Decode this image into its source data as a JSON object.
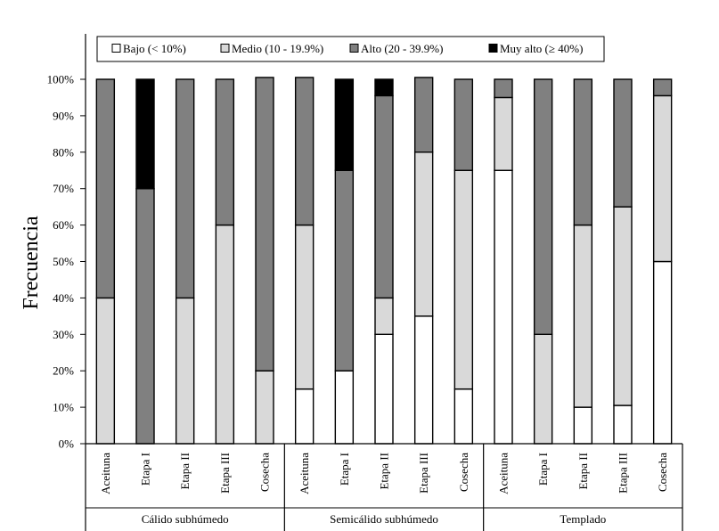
{
  "chart_data": {
    "type": "bar",
    "stacked": true,
    "percent": true,
    "ylabel": "Frecuencia",
    "ylim": [
      0,
      100
    ],
    "yticks": [
      "0%",
      "10%",
      "20%",
      "30%",
      "40%",
      "50%",
      "60%",
      "70%",
      "80%",
      "90%",
      "100%"
    ],
    "legend_position": "top",
    "groups": [
      {
        "name": "Cálido subhúmedo",
        "categories": [
          "Aceituna",
          "Etapa I",
          "Etapa II",
          "Etapa III",
          "Cosecha"
        ]
      },
      {
        "name": "Semicálido subhúmedo",
        "categories": [
          "Aceituna",
          "Etapa I",
          "Etapa II",
          "Etapa III",
          "Cosecha"
        ]
      },
      {
        "name": "Templado",
        "categories": [
          "Aceituna",
          "Etapa I",
          "Etapa II",
          "Etapa III",
          "Cosecha"
        ]
      }
    ],
    "series": [
      {
        "name": "Bajo (< 10%)",
        "color": "#ffffff",
        "values": [
          0,
          0,
          0,
          0,
          0,
          15,
          20,
          30,
          35,
          15,
          75,
          0,
          10,
          10.5,
          50
        ]
      },
      {
        "name": "Medio (10 - 19.9%)",
        "color": "#d9d9d9",
        "values": [
          40,
          0,
          40,
          60,
          20,
          45,
          0,
          10,
          45,
          60,
          20,
          30,
          50,
          54.5,
          45.5
        ]
      },
      {
        "name": "Alto (20 - 39.9%)",
        "color": "#808080",
        "values": [
          60,
          70,
          60,
          40,
          80.5,
          40.5,
          55,
          55.5,
          20.5,
          25,
          5,
          70,
          40,
          35,
          4.5
        ]
      },
      {
        "name": "Muy alto (≥ 40%)",
        "color": "#000000",
        "values": [
          0,
          30,
          0,
          0,
          0,
          0,
          25,
          4.5,
          0,
          0,
          0,
          0,
          0,
          0,
          0
        ]
      }
    ]
  }
}
